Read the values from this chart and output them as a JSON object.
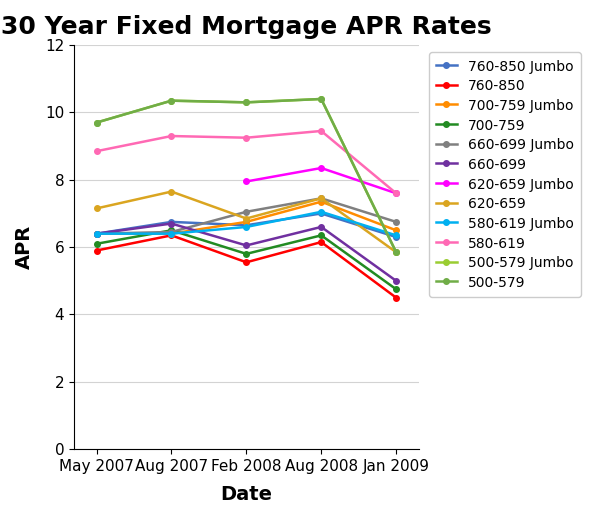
{
  "title": "30 Year Fixed Mortgage APR Rates",
  "xlabel": "Date",
  "ylabel": "APR",
  "x_labels": [
    "May 2007",
    "Aug 2007",
    "Feb 2008",
    "Aug 2008",
    "Jan 2009"
  ],
  "ylim": [
    0,
    12
  ],
  "yticks": [
    0,
    2,
    4,
    6,
    8,
    10,
    12
  ],
  "series": [
    {
      "label": "760-850 Jumbo",
      "color": "#4472C4",
      "values": [
        6.4,
        6.75,
        6.65,
        7.0,
        6.3
      ]
    },
    {
      "label": "760-850",
      "color": "#FF0000",
      "values": [
        5.9,
        6.35,
        5.55,
        6.15,
        4.5
      ]
    },
    {
      "label": "700-759 Jumbo",
      "color": "#FF8C00",
      "values": [
        6.4,
        6.4,
        6.75,
        7.35,
        6.5
      ]
    },
    {
      "label": "700-759",
      "color": "#228B22",
      "values": [
        6.1,
        6.5,
        5.8,
        6.35,
        4.75
      ]
    },
    {
      "label": "660-699 Jumbo",
      "color": "#808080",
      "values": [
        6.4,
        6.45,
        7.05,
        7.45,
        6.75
      ]
    },
    {
      "label": "660-699",
      "color": "#7030A0",
      "values": [
        6.4,
        6.7,
        6.05,
        6.6,
        5.0
      ]
    },
    {
      "label": "620-659 Jumbo",
      "color": "#FF00FF",
      "values": [
        null,
        null,
        7.95,
        8.35,
        7.6
      ]
    },
    {
      "label": "620-659",
      "color": "#DAA520",
      "values": [
        7.15,
        7.65,
        6.85,
        7.45,
        5.85
      ]
    },
    {
      "label": "580-619 Jumbo",
      "color": "#00B0F0",
      "values": [
        6.4,
        6.4,
        6.6,
        7.05,
        6.35
      ]
    },
    {
      "label": "580-619",
      "color": "#FF69B4",
      "values": [
        8.85,
        9.3,
        9.25,
        9.45,
        7.6
      ]
    },
    {
      "label": "500-579 Jumbo",
      "color": "#9ACD32",
      "values": [
        9.7,
        10.35,
        10.3,
        10.4,
        5.85
      ]
    },
    {
      "label": "500-579",
      "color": "#70AD47",
      "values": [
        9.7,
        10.35,
        10.3,
        10.4,
        5.85
      ]
    }
  ],
  "title_fontsize": 18,
  "axis_label_fontsize": 14,
  "tick_fontsize": 11,
  "legend_fontsize": 10,
  "figsize": [
    5.97,
    5.19
  ],
  "dpi": 100
}
